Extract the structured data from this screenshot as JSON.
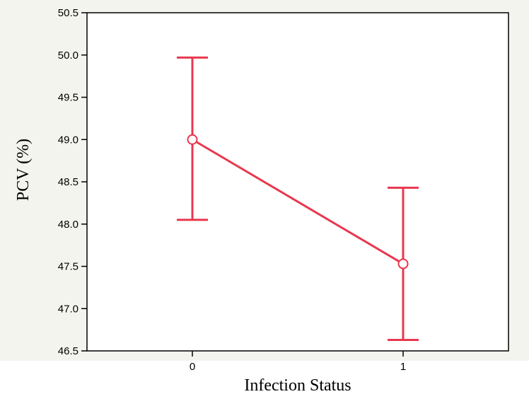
{
  "chart_data": {
    "type": "line",
    "title": "",
    "xlabel": "Infection Status",
    "ylabel": "PCV (%)",
    "categories": [
      "0",
      "1"
    ],
    "series": [
      {
        "values": [
          49.0,
          47.53
        ],
        "error_low": [
          48.05,
          46.63
        ],
        "error_high": [
          49.97,
          48.43
        ],
        "color": "#e8384f",
        "marker": "open-circle"
      }
    ],
    "ylim": [
      46.5,
      50.5
    ],
    "yticks": [
      "46.5",
      "47.0",
      "47.5",
      "48.0",
      "48.5",
      "49.0",
      "49.5",
      "50.0",
      "50.5"
    ],
    "grid": false,
    "legend": "none",
    "colors": {
      "plot_background": "#ffffff",
      "frame_background": "#f4f4ef",
      "axis": "#000000",
      "series": "#e8384f"
    }
  }
}
